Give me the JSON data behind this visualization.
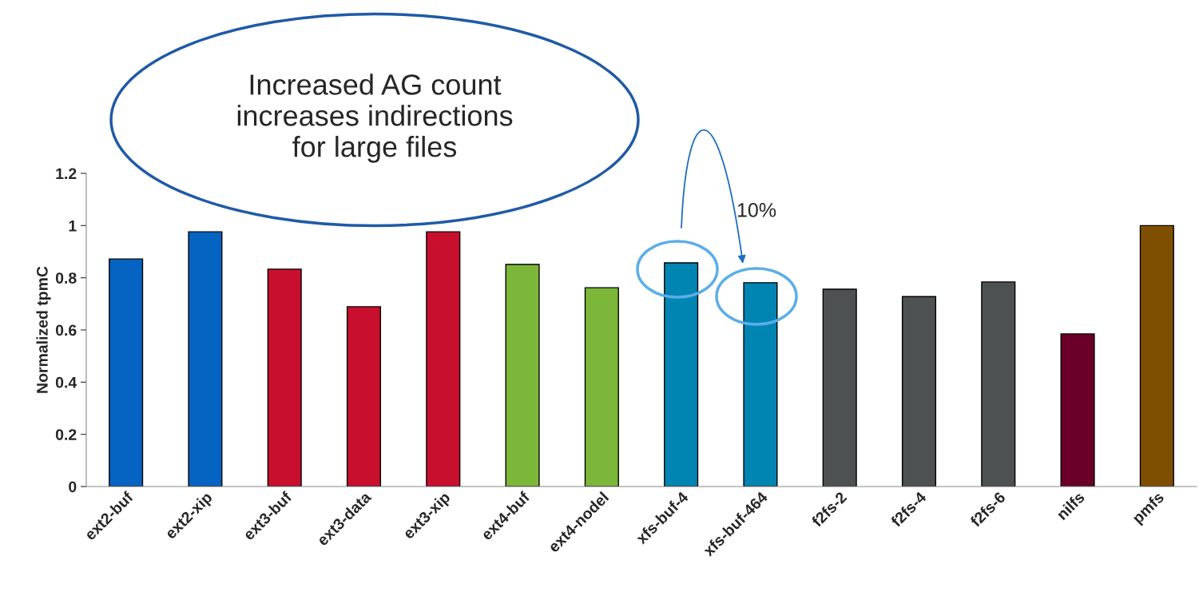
{
  "chart_data": {
    "type": "bar",
    "ylabel": "Normalized tpmC",
    "categories": [
      "ext2-buf",
      "ext2-xip",
      "ext3-buf",
      "ext3-data",
      "ext3-xip",
      "ext4-buf",
      "ext4-nodel",
      "xfs-buf-4",
      "xfs-buf-464",
      "f2fs-2",
      "f2fs-4",
      "f2fs-6",
      "nilfs",
      "pmfs"
    ],
    "values": [
      0.872,
      0.976,
      0.833,
      0.689,
      0.976,
      0.851,
      0.762,
      0.857,
      0.781,
      0.756,
      0.728,
      0.784,
      0.585,
      1.0
    ],
    "colors": [
      "#0563c1",
      "#0563c1",
      "#c8102e",
      "#c8102e",
      "#c8102e",
      "#7db739",
      "#7db739",
      "#0085b3",
      "#0085b3",
      "#4d5152",
      "#4d5152",
      "#4d5152",
      "#6a0027",
      "#7f4f00"
    ],
    "ylim": [
      0,
      1.2
    ],
    "yticks": [
      0,
      0.2,
      0.4,
      0.6,
      0.8,
      1,
      1.2
    ],
    "grid": false,
    "legend": false,
    "annotations": [
      "Increased AG count\nincreases indirections\nfor large files",
      "10%"
    ]
  }
}
